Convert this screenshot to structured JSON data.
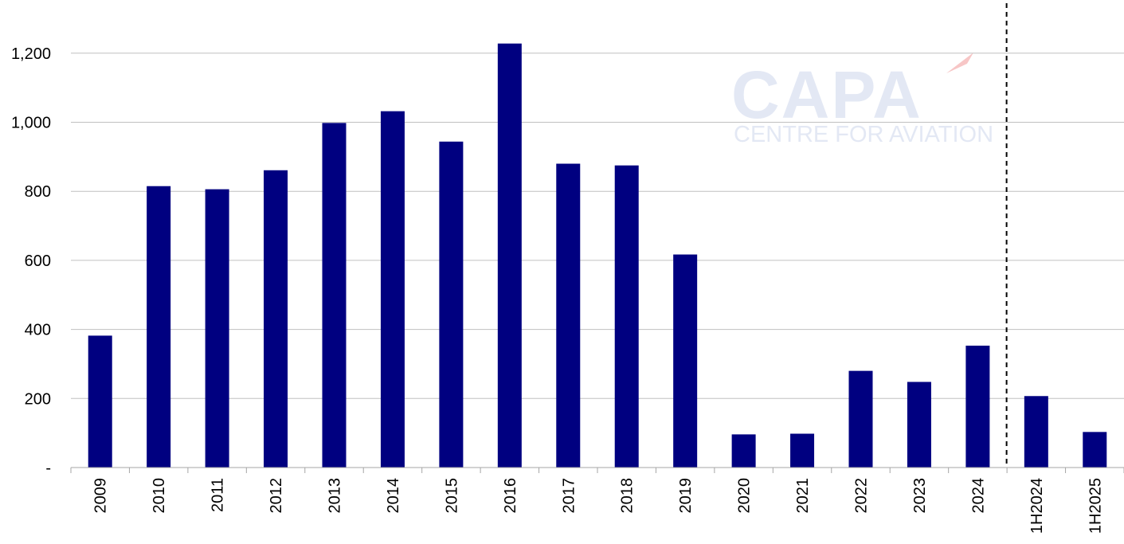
{
  "chart_data": {
    "type": "bar",
    "title": "",
    "xlabel": "",
    "ylabel": "",
    "categories": [
      "2009",
      "2010",
      "2011",
      "2012",
      "2013",
      "2014",
      "2015",
      "2016",
      "2017",
      "2018",
      "2019",
      "2020",
      "2021",
      "2022",
      "2023",
      "2024",
      "1H2024",
      "1H2025"
    ],
    "series": [
      {
        "values": [
          382,
          815,
          806,
          861,
          998,
          1032,
          944,
          1228,
          880,
          875,
          617,
          96,
          98,
          280,
          248,
          353,
          207,
          103
        ]
      }
    ],
    "ylim": [
      0,
      1300
    ],
    "yticks": [
      0,
      200,
      400,
      600,
      800,
      1000,
      1200
    ],
    "ytick_labels": [
      "-",
      "200",
      "400",
      "600",
      "800",
      "1,000",
      "1,200"
    ],
    "grid": true,
    "legend": "none",
    "divider_after_category": "2024",
    "bar_color": "#000080",
    "gridline_color": "#c0c0c0"
  },
  "watermark": {
    "main": "CAPA",
    "sub": "CENTRE FOR AVIATION",
    "color": "#e3e8f4",
    "accent_color": "#f7c6c6"
  }
}
